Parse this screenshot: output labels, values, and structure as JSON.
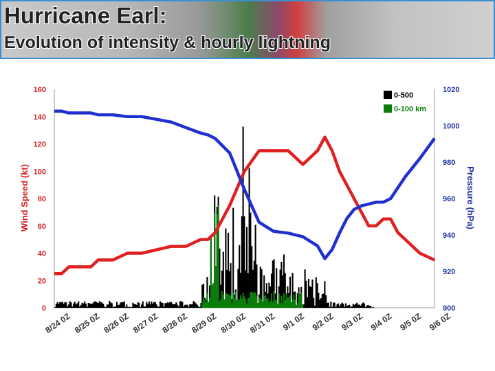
{
  "header": {
    "title": "Hurricane Earl:",
    "subtitle": "Evolution of intensity & hourly lightning"
  },
  "chart_data": {
    "type": "line",
    "ylabel": "Wind Speed (kt)",
    "y2label": "Pressure (hPa)",
    "ylim": [
      0,
      160
    ],
    "y2lim": [
      900,
      1020
    ],
    "yticks": [
      0,
      20,
      40,
      60,
      80,
      100,
      120,
      140,
      160
    ],
    "y2ticks": [
      900,
      920,
      940,
      960,
      980,
      1000,
      1020
    ],
    "xlim": [
      0,
      13
    ],
    "xticks": [
      {
        "x": 0,
        "label": "8/24 0Z"
      },
      {
        "x": 1,
        "label": "8/25 0Z"
      },
      {
        "x": 2,
        "label": "8/26 0Z"
      },
      {
        "x": 3,
        "label": "8/27 0Z"
      },
      {
        "x": 4,
        "label": "8/28 0Z"
      },
      {
        "x": 5,
        "label": "8/29 0Z"
      },
      {
        "x": 6,
        "label": "8/30 0Z"
      },
      {
        "x": 7,
        "label": "8/31 0Z"
      },
      {
        "x": 8,
        "label": "9/1 0Z"
      },
      {
        "x": 9,
        "label": "9/2 0Z"
      },
      {
        "x": 10,
        "label": "9/3 0Z"
      },
      {
        "x": 11,
        "label": "9/4 0Z"
      },
      {
        "x": 12,
        "label": "9/5 0Z"
      },
      {
        "x": 13,
        "label": "9/6 0Z"
      }
    ],
    "legend": [
      {
        "label": "0-500",
        "color": "#000000"
      },
      {
        "label": "0-100 km",
        "color": "#0a7d0a"
      }
    ],
    "series": [
      {
        "axis": "left",
        "color": "#e02020",
        "x": [
          0,
          0.25,
          0.5,
          1.25,
          1.5,
          2,
          2.5,
          3,
          4,
          4.5,
          5,
          5.25,
          5.5,
          6,
          6.5,
          7,
          8,
          8.25,
          8.5,
          9,
          9.25,
          9.5,
          9.75,
          10,
          10.25,
          10.5,
          10.75,
          11,
          11.25,
          11.5,
          11.75,
          12,
          12.5,
          13
        ],
        "y": [
          25,
          25,
          30,
          30,
          35,
          35,
          40,
          40,
          45,
          45,
          50,
          50,
          55,
          75,
          100,
          115,
          115,
          110,
          105,
          115,
          125,
          115,
          100,
          90,
          80,
          70,
          60,
          60,
          65,
          65,
          55,
          50,
          40,
          35
        ]
      },
      {
        "axis": "right",
        "color": "#2030d0",
        "x": [
          0,
          0.25,
          0.5,
          1.25,
          1.5,
          2,
          2.5,
          3,
          4,
          4.5,
          5,
          5.25,
          5.5,
          6,
          6.5,
          7,
          7.5,
          8,
          8.25,
          8.5,
          9,
          9.25,
          9.5,
          9.75,
          10,
          10.25,
          10.5,
          10.75,
          11,
          11.25,
          11.5,
          11.75,
          12,
          12.5,
          13
        ],
        "y": [
          1008,
          1008,
          1007,
          1007,
          1006,
          1006,
          1005,
          1005,
          1002,
          999,
          996,
          995,
          993,
          985,
          965,
          947,
          942,
          941,
          940,
          939,
          934,
          927,
          932,
          941,
          949,
          954,
          956,
          957,
          958,
          958,
          960,
          966,
          972,
          982,
          993
        ]
      }
    ],
    "lightning_note": "hourly lightning counts drawn as bars against the left axis"
  }
}
